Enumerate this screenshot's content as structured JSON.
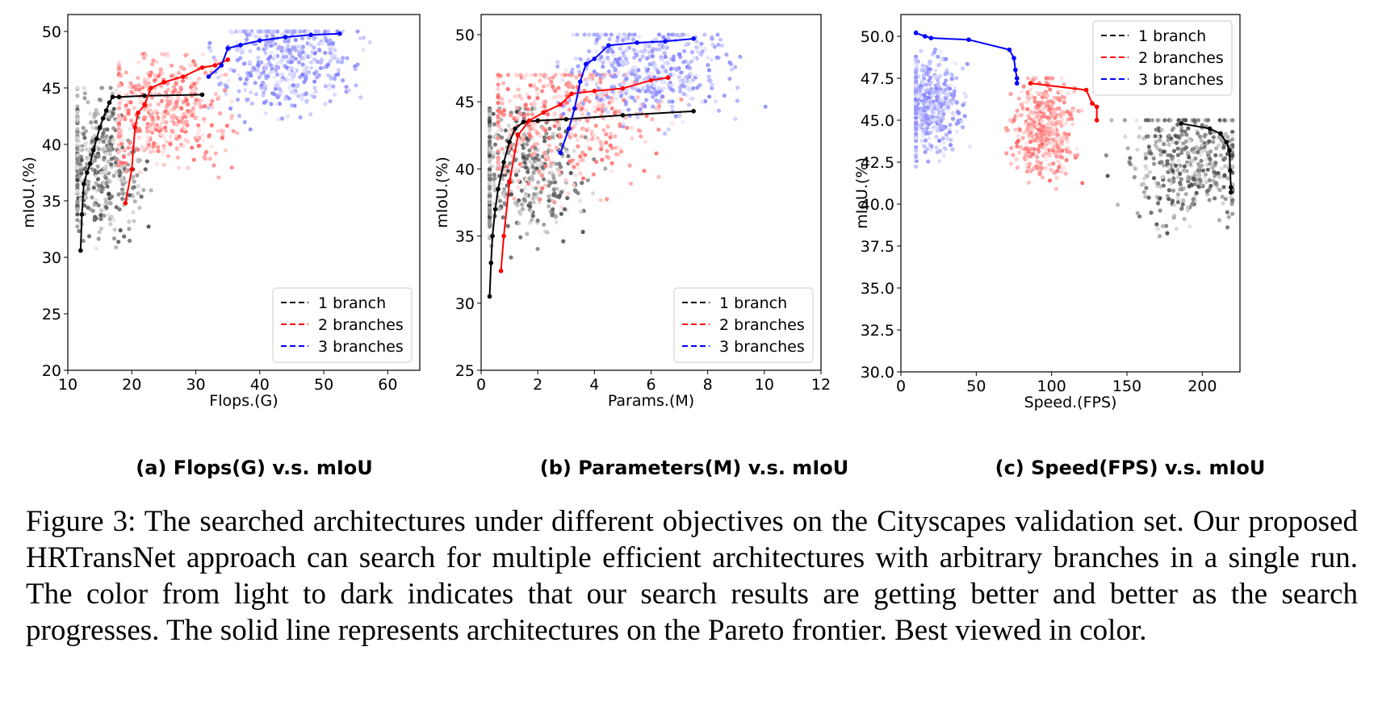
{
  "subcaptions": {
    "a": "(a) Flops(G) v.s. mIoU",
    "b": "(b) Parameters(M) v.s. mIoU",
    "c": "(c) Speed(FPS) v.s. mIoU"
  },
  "caption": "Figure 3: The searched architectures under different objectives on the Cityscapes validation set. Our proposed HRTransNet approach can search for multiple efficient architectures with arbitrary branches in a single run. The color from light to dark indicates that our search results are getting better and better as the search progresses. The solid line represents architectures on the Pareto frontier. Best viewed in color.",
  "colors": {
    "1 branch": "#000000",
    "2 branches": "#ff0000",
    "3 branches": "#0000ff"
  },
  "chart_data": [
    {
      "type": "scatter",
      "xlabel": "Flops.(G)",
      "ylabel": "mIoU.(%)",
      "xlim": [
        10,
        65
      ],
      "ylim": [
        20,
        51.5
      ],
      "xticks": [
        10,
        20,
        30,
        40,
        50,
        60
      ],
      "yticks": [
        20,
        25,
        30,
        35,
        40,
        45,
        50
      ],
      "ytick_labels": [
        "20",
        "25",
        "30",
        "35",
        "40",
        "45",
        "50"
      ],
      "legend_position": "lower right",
      "legend": [
        "1 branch",
        "2 branches",
        "3 branches"
      ],
      "clouds": [
        {
          "name": "1 branch",
          "x": [
            11.5,
            35
          ],
          "y": [
            25,
            45
          ],
          "center": [
            14.5,
            38
          ]
        },
        {
          "name": "2 branches",
          "x": [
            18,
            50
          ],
          "y": [
            31,
            48
          ],
          "center": [
            25,
            43
          ]
        },
        {
          "name": "3 branches",
          "x": [
            32,
            65
          ],
          "y": [
            35,
            50
          ],
          "center": [
            44,
            47.5
          ]
        }
      ],
      "series": [
        {
          "name": "1 branch",
          "x": [
            12,
            12.2,
            12.5,
            13,
            13.5,
            14,
            14.5,
            15,
            15.5,
            16,
            16.5,
            17,
            18,
            22,
            31
          ],
          "y": [
            30.6,
            33.8,
            36.5,
            37.5,
            38.3,
            39.5,
            40.5,
            41.5,
            42.3,
            43,
            43.7,
            44.2,
            44.2,
            44.3,
            44.4
          ]
        },
        {
          "name": "2 branches",
          "x": [
            19,
            20,
            20.5,
            21,
            22,
            23,
            25,
            28,
            31,
            33,
            35
          ],
          "y": [
            34.8,
            37.8,
            41.5,
            42.8,
            43.5,
            45,
            45.5,
            46,
            46.8,
            47,
            47.5
          ]
        },
        {
          "name": "3 branches",
          "x": [
            32,
            34,
            35,
            37,
            40,
            44,
            48,
            52.5
          ],
          "y": [
            46,
            47,
            48.5,
            48.8,
            49.2,
            49.5,
            49.7,
            49.8
          ]
        }
      ]
    },
    {
      "type": "scatter",
      "xlabel": "Params.(M)",
      "ylabel": "mIoU.(%)",
      "xlim": [
        0,
        12
      ],
      "ylim": [
        25,
        51.5
      ],
      "xticks": [
        0,
        2,
        4,
        6,
        8,
        10,
        12
      ],
      "yticks": [
        25,
        30,
        35,
        40,
        45,
        50
      ],
      "ytick_labels": [
        "25",
        "30",
        "35",
        "40",
        "45",
        "50"
      ],
      "legend_position": "lower right",
      "legend": [
        "1 branch",
        "2 branches",
        "3 branches"
      ],
      "clouds": [
        {
          "name": "1 branch",
          "x": [
            0.3,
            8
          ],
          "y": [
            27.5,
            44.5
          ],
          "center": [
            1.2,
            40
          ]
        },
        {
          "name": "2 branches",
          "x": [
            0.6,
            11
          ],
          "y": [
            30,
            47
          ],
          "center": [
            3,
            44
          ]
        },
        {
          "name": "3 branches",
          "x": [
            2.7,
            12
          ],
          "y": [
            38,
            50
          ],
          "center": [
            6,
            47.5
          ]
        }
      ],
      "series": [
        {
          "name": "1 branch",
          "x": [
            0.3,
            0.35,
            0.4,
            0.5,
            0.6,
            0.8,
            1.0,
            1.2,
            1.5,
            2,
            3,
            5,
            7.5
          ],
          "y": [
            30.5,
            33,
            35,
            37,
            38.5,
            40.5,
            42,
            43,
            43.5,
            43.6,
            43.7,
            44,
            44.3
          ]
        },
        {
          "name": "2 branches",
          "x": [
            0.7,
            0.8,
            1.0,
            1.3,
            1.7,
            2.2,
            2.8,
            3.2,
            4,
            5,
            6,
            6.6
          ],
          "y": [
            32.4,
            35,
            39,
            42.5,
            43.6,
            44.2,
            44.8,
            45.6,
            45.8,
            46,
            46.6,
            46.8
          ]
        },
        {
          "name": "3 branches",
          "x": [
            2.8,
            3.1,
            3.3,
            3.5,
            3.7,
            4.0,
            4.5,
            5.5,
            6.5,
            7.5
          ],
          "y": [
            41.2,
            43,
            44.5,
            46.5,
            47.8,
            48.2,
            49.2,
            49.4,
            49.5,
            49.7
          ]
        }
      ]
    },
    {
      "type": "scatter",
      "xlabel": "Speed.(FPS)",
      "ylabel": "mIoU.(%)",
      "xlim": [
        0,
        225
      ],
      "ylim": [
        30,
        51.3
      ],
      "xticks": [
        0,
        50,
        100,
        150,
        200
      ],
      "yticks": [
        30,
        32.5,
        35,
        37.5,
        40,
        42.5,
        45,
        47.5,
        50
      ],
      "ytick_labels": [
        "30.0",
        "32.5",
        "35.0",
        "37.5",
        "40.0",
        "42.5",
        "45.0",
        "47.5",
        "50.0"
      ],
      "legend_position": "upper right",
      "legend": [
        "1 branch",
        "2 branches",
        "3 branches"
      ],
      "clouds": [
        {
          "name": "1 branch",
          "x": [
            90,
            220
          ],
          "y": [
            33,
            45
          ],
          "center": [
            190,
            42.5
          ]
        },
        {
          "name": "2 branches",
          "x": [
            70,
            135
          ],
          "y": [
            38,
            47.5
          ],
          "center": [
            95,
            44.5
          ]
        },
        {
          "name": "3 branches",
          "x": [
            10,
            80
          ],
          "y": [
            40.5,
            50.3
          ],
          "center": [
            18,
            46
          ]
        }
      ],
      "series": [
        {
          "name": "1 branch",
          "x": [
            186,
            205,
            212,
            216,
            218,
            218.5,
            219,
            219
          ],
          "y": [
            44.8,
            44.5,
            44.2,
            43.7,
            43.2,
            42,
            41,
            40.7
          ]
        },
        {
          "name": "2 branches",
          "x": [
            86,
            123,
            127,
            130,
            130
          ],
          "y": [
            47.2,
            46.8,
            46,
            45.8,
            45
          ]
        },
        {
          "name": "3 branches",
          "x": [
            10,
            16,
            20,
            45,
            72,
            75,
            76,
            77,
            77
          ],
          "y": [
            50.2,
            50,
            49.9,
            49.8,
            49.2,
            48.7,
            48,
            47.5,
            47.2
          ]
        }
      ]
    }
  ]
}
